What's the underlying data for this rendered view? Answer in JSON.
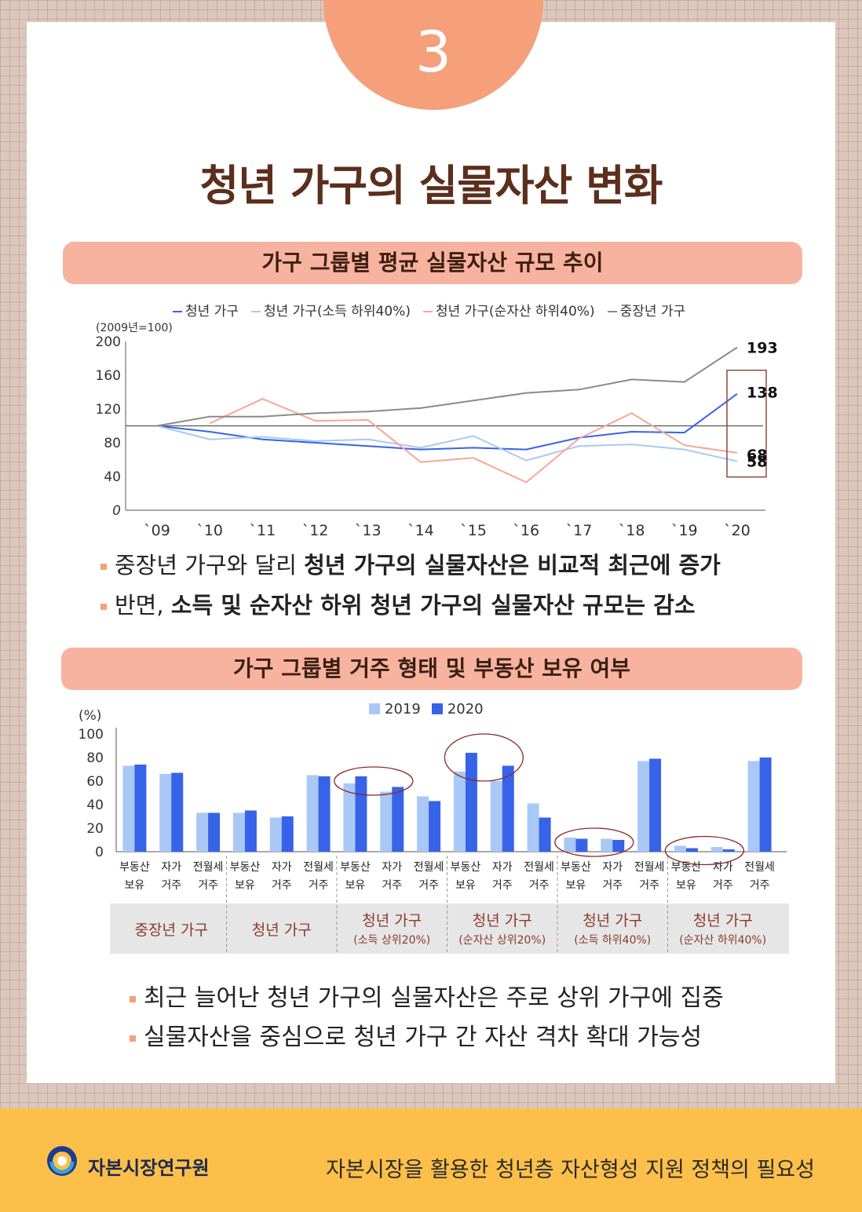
{
  "page": {
    "number": "3",
    "title": "청년 가구의 실물자산 변화"
  },
  "section1": {
    "heading": "가구 그룹별 평균 실물자산 규모 추이",
    "bullets": [
      {
        "plain": "중장년 가구와 달리 ",
        "bold": "청년 가구의 실물자산은 비교적 최근에 증가"
      },
      {
        "plain": "반면, ",
        "bold": "소득 및 순자산 하위 청년 가구의 실물자산 규모는 감소"
      }
    ]
  },
  "section2": {
    "heading": "가구 그룹별 거주 형태 및 부동산 보유 여부",
    "bullets": [
      "최근 늘어난 청년 가구의 실물자산은 주로 상위 가구에 집중",
      "실물자산을 중심으로 청년 가구 간 자산 격차 확대 가능성"
    ]
  },
  "footer": {
    "org": "자본시장연구원",
    "subtitle": "자본시장을 활용한 청년층 자산형성 지원 정책의 필요성"
  },
  "colors": {
    "accent": "#f5a07a",
    "pill": "#f7b3a0",
    "title": "#5c2e1c",
    "footer": "#fbbf4a",
    "bar2019": "#a9c8f5",
    "bar2020": "#3763e8"
  },
  "chart_data": [
    {
      "type": "line",
      "unit_label": "(2009년=100)",
      "categories": [
        "`09",
        "`10",
        "`11",
        "`12",
        "`13",
        "`14",
        "`15",
        "`16",
        "`17",
        "`18",
        "`19",
        "`20"
      ],
      "ylim": [
        0,
        200
      ],
      "yticks": [
        0,
        40,
        80,
        120,
        160,
        200
      ],
      "reference_line": 100,
      "series": [
        {
          "name": "청년 가구",
          "color": "#3763e8",
          "values": [
            100,
            93,
            84,
            80,
            76,
            72,
            74,
            72,
            86,
            93,
            92,
            138
          ]
        },
        {
          "name": "청년 가구(소득 하위40%)",
          "color": "#a9c8f5",
          "values": [
            100,
            84,
            87,
            82,
            84,
            74,
            88,
            59,
            76,
            78,
            72,
            58
          ]
        },
        {
          "name": "청년 가구(순자산 하위40%)",
          "color": "#f6a796",
          "values": [
            null,
            103,
            132,
            106,
            107,
            57,
            62,
            33,
            85,
            115,
            77,
            68
          ]
        },
        {
          "name": "중장년 가구",
          "color": "#8a8a8a",
          "values": [
            100,
            111,
            111,
            115,
            117,
            121,
            130,
            139,
            143,
            155,
            152,
            193
          ]
        }
      ],
      "end_labels": [
        "193",
        "138",
        "68",
        "58"
      ],
      "grid": false
    },
    {
      "type": "bar",
      "ylabel": "(%)",
      "ylim": [
        0,
        100
      ],
      "yticks": [
        0,
        20,
        40,
        60,
        80,
        100
      ],
      "categories": [
        "부동산 보유",
        "자가 거주",
        "전월세 거주",
        "부동산 보유",
        "자가 거주",
        "전월세 거주",
        "부동산 보유",
        "자가 거주",
        "전월세 거주",
        "부동산 보유",
        "자가 거주",
        "전월세 거주",
        "부동산 보유",
        "자가 거주",
        "전월세 거주",
        "부동산 보유",
        "자가 거주",
        "전월세 거주"
      ],
      "category_lines": [
        [
          "부동산",
          "보유"
        ],
        [
          "자가",
          "거주"
        ],
        [
          "전월세",
          "거주"
        ]
      ],
      "groups": [
        {
          "name": "중장년 가구",
          "sub": ""
        },
        {
          "name": "청년 가구",
          "sub": ""
        },
        {
          "name": "청년 가구",
          "sub": "(소득 상위20%)"
        },
        {
          "name": "청년 가구",
          "sub": "(순자산 상위20%)"
        },
        {
          "name": "청년 가구",
          "sub": "(소득 하위40%)"
        },
        {
          "name": "청년 가구",
          "sub": "(순자산 하위40%)"
        }
      ],
      "series": [
        {
          "name": "2019",
          "values": [
            73,
            66,
            33,
            33,
            29,
            65,
            58,
            51,
            47,
            68,
            60,
            41,
            12,
            11,
            77,
            5,
            4,
            77
          ]
        },
        {
          "name": "2020",
          "values": [
            74,
            67,
            33,
            35,
            30,
            64,
            64,
            55,
            43,
            84,
            73,
            29,
            11,
            10,
            79,
            3,
            2,
            80
          ]
        }
      ],
      "grid": false
    }
  ]
}
